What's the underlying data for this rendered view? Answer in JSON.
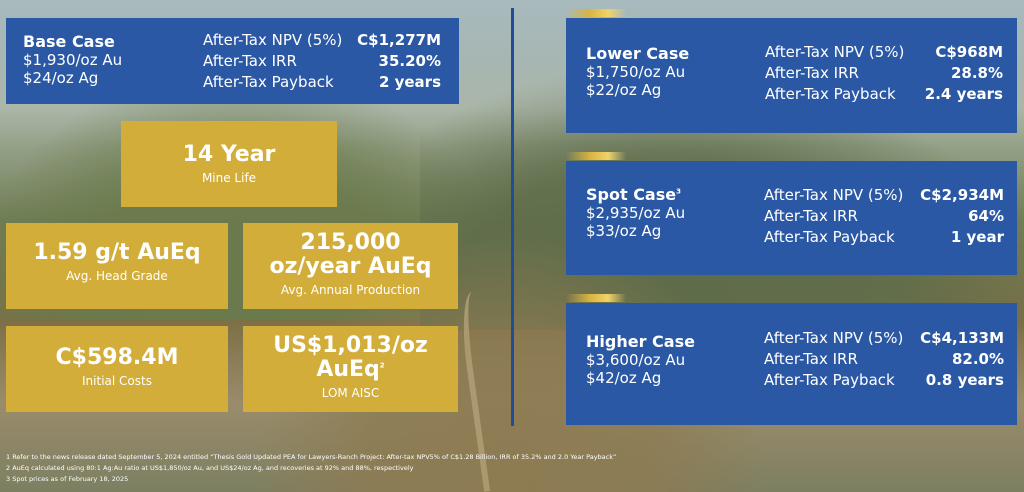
{
  "cases": {
    "base": {
      "name": "Base Case",
      "gold_price": "$1,930/oz Au",
      "silver_price": "$24/oz Ag",
      "metrics": [
        {
          "label": "After-Tax NPV (5%)",
          "value": "C$1,277M"
        },
        {
          "label": "After-Tax IRR",
          "value": "35.20%"
        },
        {
          "label": "After-Tax Payback",
          "value": "2 years"
        }
      ]
    },
    "lower": {
      "name": "Lower Case",
      "gold_price": "$1,750/oz Au",
      "silver_price": "$22/oz Ag",
      "metrics": [
        {
          "label": "After-Tax NPV (5%)",
          "value": "C$968M"
        },
        {
          "label": "After-Tax IRR",
          "value": "28.8%"
        },
        {
          "label": "After-Tax Payback",
          "value": "2.4 years"
        }
      ]
    },
    "spot": {
      "name": "Spot Case",
      "footnote_mark": "3",
      "gold_price": "$2,935/oz Au",
      "silver_price": "$33/oz Ag",
      "metrics": [
        {
          "label": "After-Tax NPV (5%)",
          "value": "C$2,934M"
        },
        {
          "label": "After-Tax IRR",
          "value": "64%"
        },
        {
          "label": "After-Tax Payback",
          "value": "1 year"
        }
      ]
    },
    "higher": {
      "name": "Higher Case",
      "gold_price": "$3,600/oz Au",
      "silver_price": "$42/oz Ag",
      "metrics": [
        {
          "label": "After-Tax NPV (5%)",
          "value": "C$4,133M"
        },
        {
          "label": "After-Tax IRR",
          "value": "82.0%"
        },
        {
          "label": "After-Tax Payback",
          "value": "0.8 years"
        }
      ]
    }
  },
  "highlights": {
    "mine_life": {
      "value": "14 Year",
      "label": "Mine Life"
    },
    "head_grade": {
      "value": "1.59 g/t AuEq",
      "label": "Avg. Head Grade"
    },
    "annual_production": {
      "value_line1": "215,000",
      "value_line2": "oz/year AuEq",
      "label": "Avg. Annual Production"
    },
    "initial_costs": {
      "value": "C$598.4M",
      "label": "Initial Costs"
    },
    "aisc": {
      "value_line1": "US$1,013/oz",
      "value_line2": "AuEq",
      "footnote_mark": "2",
      "label": "LOM AISC"
    }
  },
  "footnotes": [
    "1  Refer to the news release dated September 5, 2024 entitled “Thesis Gold Updated PEA for Lawyers-Ranch Project: After-tax NPV5% of C$1.28 Billion, IRR of 35.2% and 2.0 Year Payback”",
    "2  AuEq calculated using 80:1 Ag:Au ratio at US$1,850/oz Au, and US$24/oz Ag, and recoveries at 92% and 88%, respectively",
    "3  Spot prices as of February 18, 2025"
  ],
  "colors": {
    "blue_panel": "#2b58a4",
    "gold_panel": "#d2ad3a",
    "divider": "#1f4d9a"
  }
}
